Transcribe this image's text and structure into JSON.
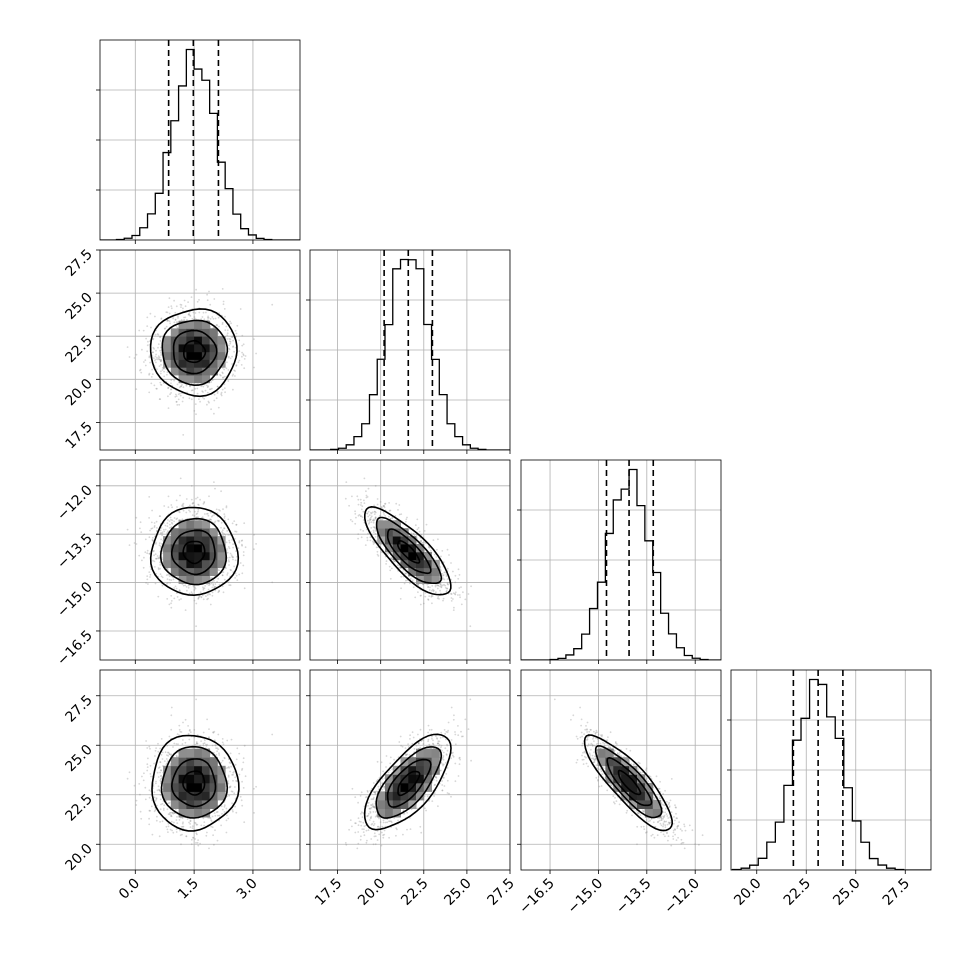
{
  "chart_data": {
    "type": "corner",
    "title": "",
    "parameters": [
      {
        "label": "",
        "range": [
          -0.9,
          4.2
        ],
        "ticks": [
          "0.0",
          "1.5",
          "3.0"
        ],
        "tick_values": [
          0.0,
          1.5,
          3.0
        ],
        "mean": 1.5,
        "sd": 0.55,
        "quantiles": [
          0.85,
          1.48,
          2.12
        ]
      },
      {
        "label": "",
        "range": [
          15.9,
          27.5
        ],
        "ticks": [
          "17.5",
          "20.0",
          "22.5",
          "25.0",
          "27.5"
        ],
        "tick_values": [
          17.5,
          20.0,
          22.5,
          25.0,
          27.5
        ],
        "mean": 21.6,
        "sd": 1.25,
        "quantiles": [
          20.2,
          21.6,
          23.0
        ]
      },
      {
        "label": "",
        "range": [
          -17.4,
          -11.2
        ],
        "ticks": [
          "−16.5",
          "−15.0",
          "−13.5",
          "−12.0"
        ],
        "tick_values": [
          -16.5,
          -15.0,
          -13.5,
          -12.0
        ],
        "mean": -14.05,
        "sd": 0.68,
        "quantiles": [
          -14.75,
          -14.05,
          -13.3
        ]
      },
      {
        "label": "",
        "range": [
          18.7,
          28.8
        ],
        "ticks": [
          "20.0",
          "22.5",
          "25.0",
          "27.5"
        ],
        "tick_values": [
          20.0,
          22.5,
          25.0,
          27.5
        ],
        "mean": 23.1,
        "sd": 1.2,
        "quantiles": [
          21.85,
          23.1,
          24.35
        ]
      }
    ],
    "correlations": [
      [
        1.0,
        0.0,
        0.0,
        0.0
      ],
      [
        0.0,
        1.0,
        -0.8,
        0.7
      ],
      [
        0.0,
        -0.8,
        1.0,
        -0.85
      ],
      [
        0.0,
        0.7,
        -0.85,
        1.0
      ]
    ],
    "histogram_bins": 20,
    "contour_levels_sigma": [
      0.5,
      1.0,
      1.5,
      2.0
    ],
    "grid": true,
    "colors": {
      "ink": "#000000",
      "grid": "#b0b0b0",
      "points": "#8c8c8c"
    }
  }
}
